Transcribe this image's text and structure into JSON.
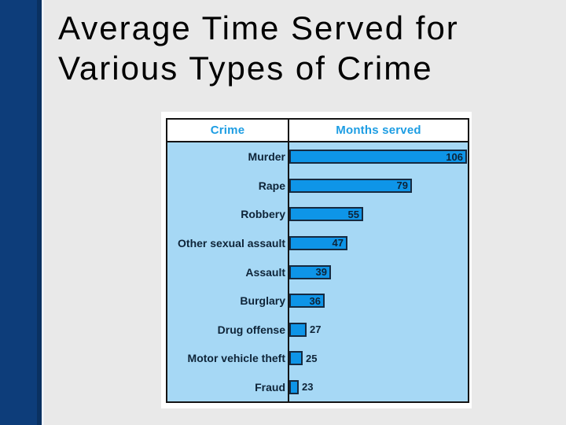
{
  "slide": {
    "title": "Average Time Served for Various Types of Crime"
  },
  "chart_data": {
    "type": "bar",
    "orientation": "horizontal",
    "title": "Average Time Served for Various Types of Crime",
    "column_headers": [
      "Crime",
      "Months served"
    ],
    "categories": [
      "Murder",
      "Rape",
      "Robbery",
      "Other sexual assault",
      "Assault",
      "Burglary",
      "Drug offense",
      "Motor vehicle theft",
      "Fraud"
    ],
    "values": [
      106,
      79,
      55,
      47,
      39,
      36,
      27,
      25,
      23
    ],
    "value_unit": "months",
    "xlabel": "Months served",
    "ylabel": "Crime",
    "axis_baseline": 20,
    "axis_max": 106,
    "grid": false,
    "legend": "none",
    "data_labels": "shown at bar ends"
  },
  "colors": {
    "sidebar": "#0d3d7a",
    "sidebar_edge": "#0a3161",
    "page_bg": "#e9e9e9",
    "panel_bg": "#ffffff",
    "plot_bg": "#a6d8f5",
    "bar_fill": "#0e95e8",
    "bar_border": "#162a40",
    "header_text": "#1d9de3",
    "label_text": "#0e2438",
    "chart_border": "#141414",
    "title_text": "#000000"
  }
}
